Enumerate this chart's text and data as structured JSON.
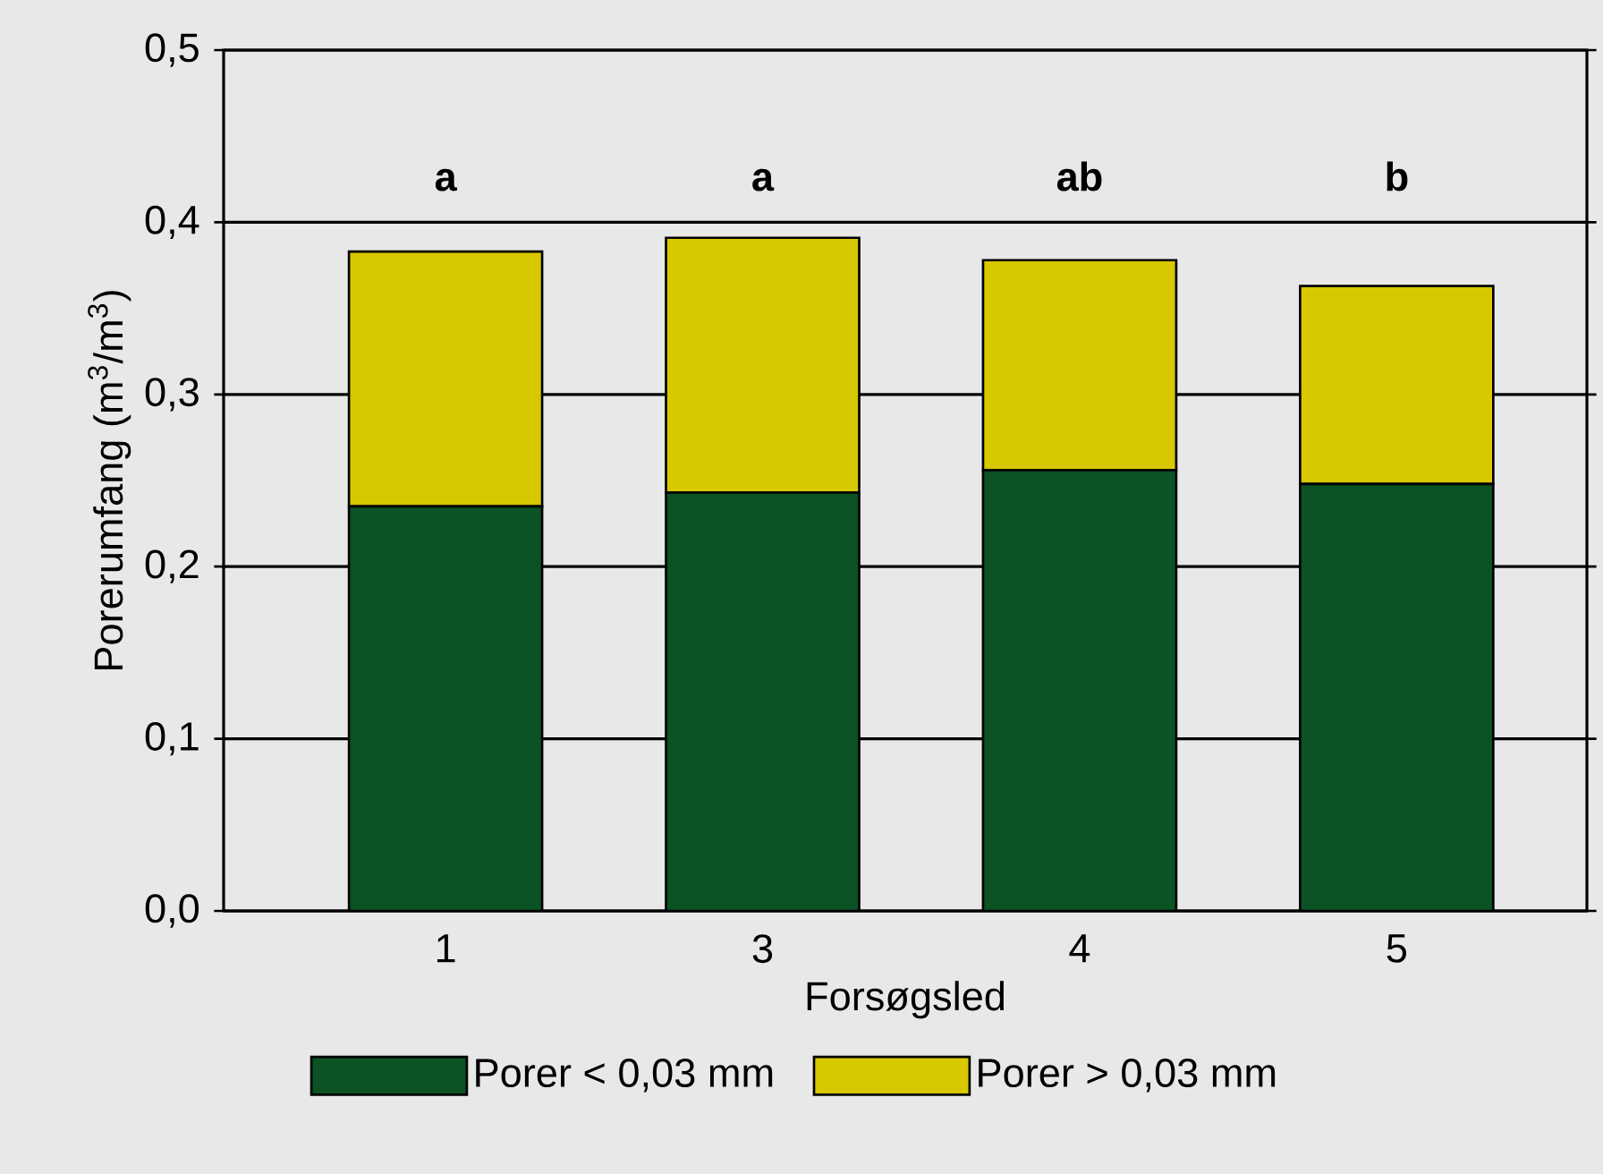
{
  "chart_data": {
    "type": "bar",
    "stacked": true,
    "xlabel": "Forsøgsled",
    "ylabel": "Porerumfang (m$^{3}$/m$^{3}$)",
    "categories": [
      "1",
      "3",
      "4",
      "5"
    ],
    "series": [
      {
        "name": "Porer < 0,03 mm",
        "color": "#0b5224",
        "values": [
          0.235,
          0.243,
          0.256,
          0.248
        ]
      },
      {
        "name": "Porer > 0,03 mm",
        "color": "#d8c800",
        "values": [
          0.148,
          0.148,
          0.122,
          0.115
        ]
      }
    ],
    "ylim": [
      0,
      0.5
    ],
    "yticks": [
      {
        "value": 0,
        "label": "0,0"
      },
      {
        "value": 0.1,
        "label": "0,1"
      },
      {
        "value": 0.2,
        "label": "0,2"
      },
      {
        "value": 0.3,
        "label": "0,3"
      },
      {
        "value": 0.4,
        "label": "0,4"
      },
      {
        "value": 0.5,
        "label": "0,5"
      }
    ],
    "grid": "y",
    "legend": "bottom",
    "annotations": [
      "a",
      "a",
      "ab",
      "b"
    ]
  }
}
